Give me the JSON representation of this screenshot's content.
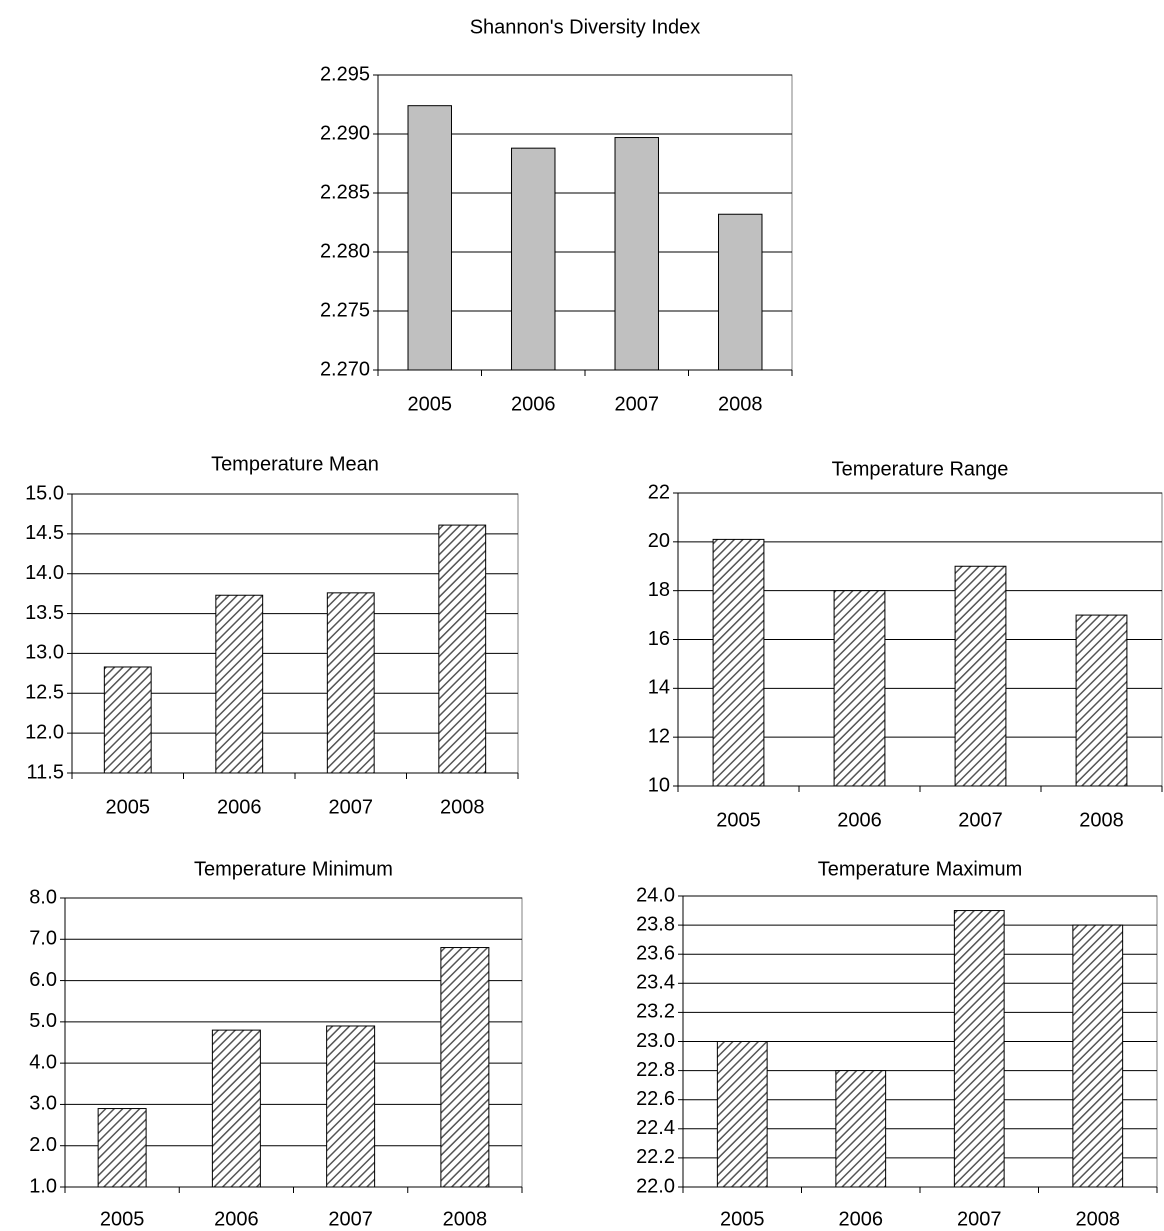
{
  "chart_data": [
    {
      "type": "bar",
      "title": "Shannon's Diversity Index",
      "categories": [
        "2005",
        "2006",
        "2007",
        "2008"
      ],
      "values": [
        2.2924,
        2.2888,
        2.2897,
        2.2832
      ],
      "color": "#c0c0c0",
      "hatch": false,
      "ylim": [
        2.27,
        2.295
      ],
      "yticks": [
        {
          "value": 2.27,
          "label": "2.270"
        },
        2.275,
        {
          "value": 2.28,
          "label": "2.280"
        },
        2.285,
        {
          "value": 2.29,
          "label": "2.290"
        },
        2.295
      ],
      "grid": true
    },
    {
      "type": "bar",
      "title": "Temperature Mean",
      "categories": [
        "2005",
        "2006",
        "2007",
        "2008"
      ],
      "values": [
        12.83,
        13.73,
        13.76,
        14.61
      ],
      "color": "#555555",
      "hatch": true,
      "ylim": [
        11.5,
        15.0
      ],
      "yticks": [
        11.5,
        {
          "value": 12,
          "label": "12.0"
        },
        12.5,
        {
          "value": 13,
          "label": "13.0"
        },
        13.5,
        {
          "value": 14,
          "label": "14.0"
        },
        14.5,
        {
          "value": 15,
          "label": "15.0"
        }
      ],
      "grid": true
    },
    {
      "type": "bar",
      "title": "Temperature Range",
      "categories": [
        "2005",
        "2006",
        "2007",
        "2008"
      ],
      "values": [
        20.1,
        18.0,
        19.0,
        17.0
      ],
      "color": "#555555",
      "hatch": true,
      "ylim": [
        10,
        22
      ],
      "yticks": [
        10,
        12,
        14,
        16,
        18,
        20,
        22
      ],
      "grid": true
    },
    {
      "type": "bar",
      "title": "Temperature Minimum",
      "categories": [
        "2005",
        "2006",
        "2007",
        "2008"
      ],
      "values": [
        2.9,
        4.8,
        4.9,
        6.8
      ],
      "color": "#555555",
      "hatch": true,
      "ylim": [
        1,
        8
      ],
      "yticks": [
        {
          "value": 1,
          "label": "1.0"
        },
        {
          "value": 2,
          "label": "2.0"
        },
        {
          "value": 3,
          "label": "3.0"
        },
        {
          "value": 4,
          "label": "4.0"
        },
        {
          "value": 5,
          "label": "5.0"
        },
        {
          "value": 6,
          "label": "6.0"
        },
        {
          "value": 7,
          "label": "7.0"
        },
        {
          "value": 8,
          "label": "8.0"
        }
      ],
      "grid": true
    },
    {
      "type": "bar",
      "title": "Temperature Maximum",
      "categories": [
        "2005",
        "2006",
        "2007",
        "2008"
      ],
      "values": [
        23.0,
        22.8,
        23.9,
        23.8
      ],
      "color": "#555555",
      "hatch": true,
      "ylim": [
        22,
        24
      ],
      "yticks": [
        {
          "value": 22,
          "label": "22.0"
        },
        22.2,
        22.4,
        22.6,
        22.8,
        {
          "value": 23,
          "label": "23.0"
        },
        23.2,
        23.4,
        23.6,
        23.8,
        {
          "value": 24,
          "label": "24.0"
        }
      ],
      "grid": true
    }
  ]
}
